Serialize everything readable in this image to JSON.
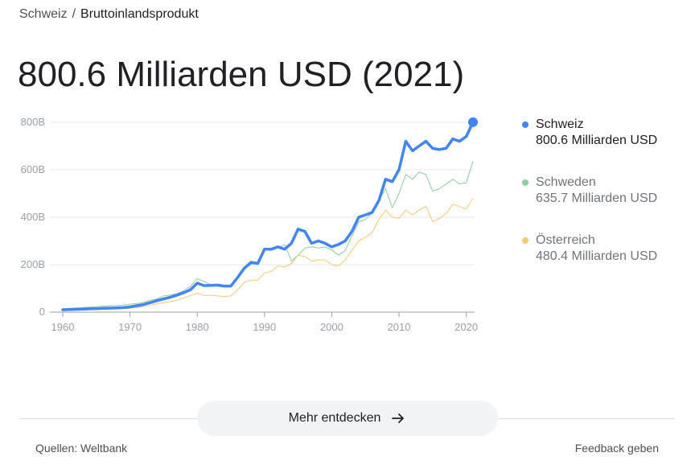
{
  "breadcrumb": {
    "parent": "Schweiz",
    "separator": "/",
    "current": "Bruttoinlandsprodukt"
  },
  "headline": "800.6 Milliarden USD (2021)",
  "legend": [
    {
      "name": "Schweiz",
      "value": "800.6 Milliarden USD",
      "color": "#4285f4",
      "active": true
    },
    {
      "name": "Schweden",
      "value": "635.7 Milliarden USD",
      "color": "#8fce9e",
      "active": false
    },
    {
      "name": "Österreich",
      "value": "480.4 Milliarden USD",
      "color": "#f6c878",
      "active": false
    }
  ],
  "more_button": {
    "label": "Mehr entdecken",
    "icon": "arrow-right-icon"
  },
  "footer": {
    "sources": "Quellen: Weltbank",
    "feedback": "Feedback geben"
  },
  "chart_data": {
    "type": "line",
    "title": "",
    "xlabel": "",
    "ylabel": "",
    "xlim": [
      1960,
      2021
    ],
    "ylim": [
      0,
      800
    ],
    "yticks": [
      0,
      200,
      400,
      600,
      800
    ],
    "ytick_labels": [
      "0",
      "200B",
      "400B",
      "600B",
      "800B"
    ],
    "xticks": [
      1960,
      1970,
      1980,
      1990,
      2000,
      2010,
      2020
    ],
    "xtick_labels": [
      "1960",
      "1970",
      "1980",
      "1990",
      "2000",
      "2010",
      "2020"
    ],
    "grid": true,
    "legend": "right",
    "x": [
      1960,
      1961,
      1962,
      1963,
      1964,
      1965,
      1966,
      1967,
      1968,
      1969,
      1970,
      1971,
      1972,
      1973,
      1974,
      1975,
      1976,
      1977,
      1978,
      1979,
      1980,
      1981,
      1982,
      1983,
      1984,
      1985,
      1986,
      1987,
      1988,
      1989,
      1990,
      1991,
      1992,
      1993,
      1994,
      1995,
      1996,
      1997,
      1998,
      1999,
      2000,
      2001,
      2002,
      2003,
      2004,
      2005,
      2006,
      2007,
      2008,
      2009,
      2010,
      2011,
      2012,
      2013,
      2014,
      2015,
      2016,
      2017,
      2018,
      2019,
      2020,
      2021
    ],
    "series": [
      {
        "name": "Schweden",
        "color": "#8fce9e",
        "width": 1,
        "values": [
          15,
          16,
          18,
          19,
          21,
          23,
          25,
          27,
          28,
          30,
          33,
          36,
          41,
          50,
          56,
          68,
          72,
          78,
          90,
          110,
          140,
          130,
          115,
          110,
          112,
          115,
          150,
          185,
          200,
          210,
          260,
          265,
          270,
          285,
          215,
          240,
          270,
          275,
          270,
          275,
          262,
          240,
          260,
          320,
          380,
          390,
          420,
          470,
          520,
          440,
          500,
          580,
          560,
          590,
          580,
          510,
          520,
          540,
          560,
          540,
          545,
          636
        ]
      },
      {
        "name": "Österreich",
        "color": "#f6c878",
        "width": 1,
        "values": [
          6,
          7,
          8,
          9,
          10,
          11,
          12,
          13,
          14,
          15,
          16,
          19,
          23,
          30,
          35,
          40,
          44,
          50,
          60,
          70,
          80,
          70,
          70,
          68,
          66,
          68,
          95,
          125,
          135,
          135,
          165,
          172,
          195,
          190,
          205,
          240,
          235,
          215,
          220,
          220,
          200,
          195,
          220,
          260,
          300,
          315,
          335,
          390,
          430,
          400,
          395,
          430,
          410,
          430,
          445,
          382,
          395,
          415,
          455,
          445,
          435,
          480
        ]
      },
      {
        "name": "Schweiz",
        "color": "#4285f4",
        "width": 3.5,
        "values": [
          10,
          11,
          12,
          13,
          14,
          15,
          16,
          17,
          18,
          19,
          22,
          27,
          32,
          40,
          48,
          56,
          63,
          72,
          82,
          95,
          122,
          112,
          113,
          114,
          110,
          110,
          146,
          185,
          210,
          205,
          265,
          265,
          275,
          265,
          290,
          350,
          340,
          290,
          300,
          290,
          275,
          285,
          300,
          340,
          400,
          410,
          420,
          470,
          560,
          550,
          600,
          720,
          680,
          700,
          720,
          690,
          685,
          690,
          730,
          720,
          740,
          800.6
        ]
      }
    ]
  }
}
